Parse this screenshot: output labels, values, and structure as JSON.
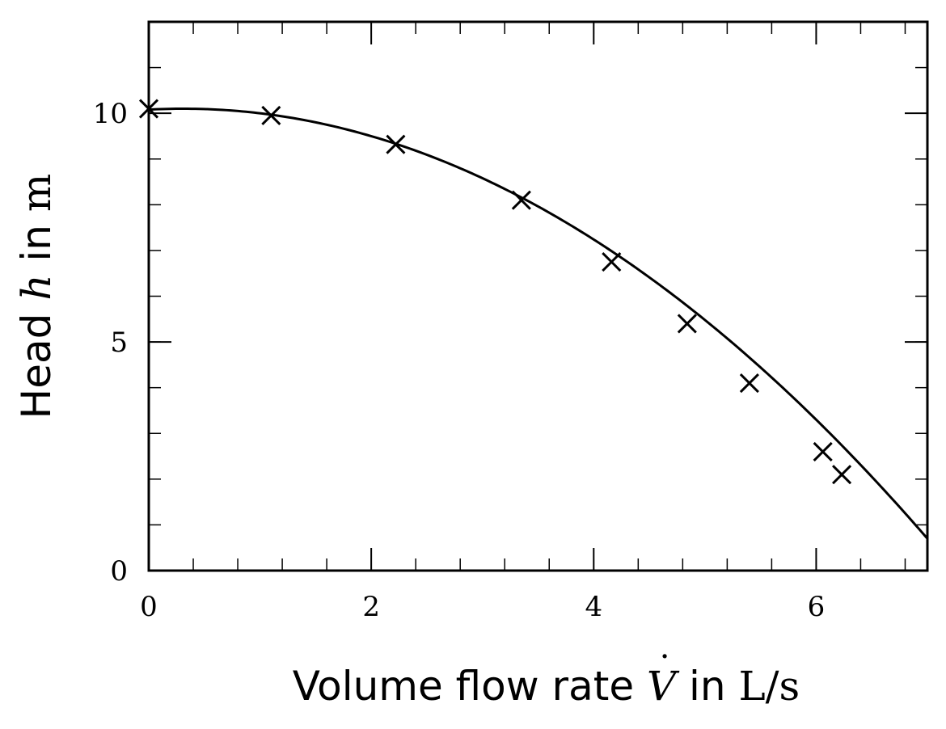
{
  "chart_data": {
    "type": "scatter",
    "xlabel_parts": {
      "prefix": "Volume flow rate ",
      "symbol": "V",
      "mid": " in ",
      "unit": "L/s"
    },
    "ylabel_parts": {
      "prefix": "Head ",
      "symbol": "h",
      "mid": " in ",
      "unit": "m"
    },
    "xlim": [
      0,
      7
    ],
    "ylim": [
      0,
      12
    ],
    "x_ticks": [
      0,
      2,
      4,
      6
    ],
    "y_ticks": [
      0,
      5,
      10
    ],
    "x_tick_labels": [
      "0",
      "2",
      "4",
      "6"
    ],
    "y_tick_labels": [
      "0",
      "5",
      "10"
    ],
    "grid": false,
    "series": [
      {
        "kind": "markers",
        "marker": "x",
        "color": "#000000",
        "x": [
          0.0,
          1.1,
          2.22,
          3.35,
          4.16,
          4.84,
          5.4,
          6.06,
          6.23
        ],
        "y": [
          10.1,
          9.95,
          9.32,
          8.1,
          6.75,
          5.4,
          4.1,
          2.6,
          2.1
        ]
      },
      {
        "kind": "fit-curve",
        "color": "#000000",
        "model": "quadratic",
        "coefficients": {
          "a": -0.21,
          "b": 0.13,
          "c": 10.08
        }
      }
    ]
  }
}
